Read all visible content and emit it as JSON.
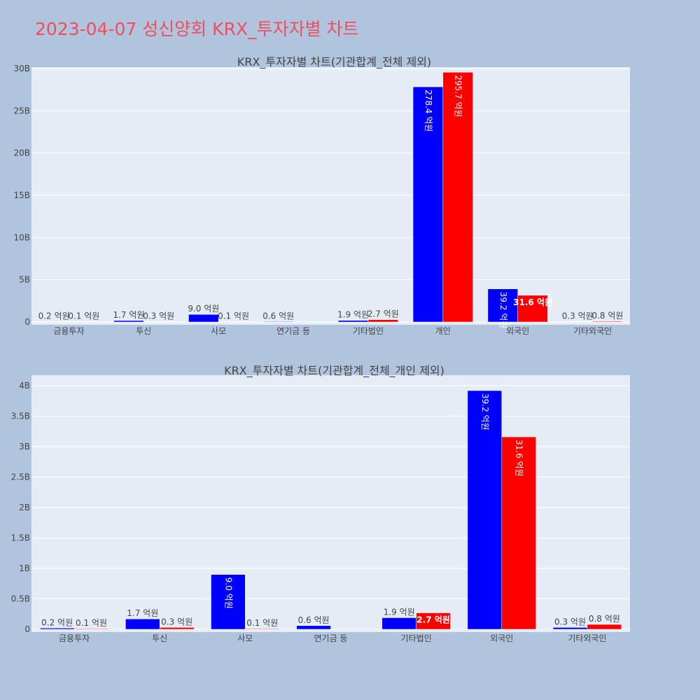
{
  "title": "2023-04-07 성신양회 KRX_투자자별 차트",
  "colors": {
    "background": "#b0c4de",
    "plot_bg": "#e5ecf6",
    "title": "#ef4e5e",
    "series_a": "#0000ff",
    "series_b": "#ff0000"
  },
  "chart_data": [
    {
      "type": "bar",
      "title": "KRX_투자자별 차트(기관합계_전체 제외)",
      "categories": [
        "금융투자",
        "투신",
        "사모",
        "연기금 등",
        "기타법인",
        "개인",
        "외국인",
        "기타외국인"
      ],
      "ylim": [
        0,
        30000000000
      ],
      "yticks": [
        0,
        5000000000,
        10000000000,
        15000000000,
        20000000000,
        25000000000,
        30000000000
      ],
      "ytick_labels": [
        "0",
        "5B",
        "10B",
        "15B",
        "20B",
        "25B",
        "30B"
      ],
      "grid": true,
      "series": [
        {
          "color": "#0000ff",
          "values": [
            20000000,
            170000000,
            900000000,
            60000000,
            190000000,
            27840000000,
            3920000000,
            30000000
          ],
          "labels": [
            "0.2 억원",
            "1.7 억원",
            "9.0 억원",
            "0.6 억원",
            "1.9 억원",
            "278.4 억원",
            "39.2 억원",
            "0.3 억원"
          ]
        },
        {
          "color": "#ff0000",
          "values": [
            10000000,
            30000000,
            10000000,
            null,
            270000000,
            29570000000,
            3160000000,
            80000000
          ],
          "labels": [
            "0.1 억원",
            "0.3 억원",
            "0.1 억원",
            "",
            "2.7 억원",
            "295.7 억원",
            "31.6 억원",
            "0.8 억원"
          ]
        }
      ]
    },
    {
      "type": "bar",
      "title": "KRX_투자자별 차트(기관합계_전체_개인 제외)",
      "categories": [
        "금융투자",
        "투신",
        "사모",
        "연기금 등",
        "기타법인",
        "외국인",
        "기타외국인"
      ],
      "ylim": [
        0,
        4150000000
      ],
      "yticks": [
        0,
        500000000,
        1000000000,
        1500000000,
        2000000000,
        2500000000,
        3000000000,
        3500000000,
        4000000000
      ],
      "ytick_labels": [
        "0",
        "0.5B",
        "1B",
        "1.5B",
        "2B",
        "2.5B",
        "3B",
        "3.5B",
        "4B"
      ],
      "grid": true,
      "series": [
        {
          "color": "#0000ff",
          "values": [
            20000000,
            170000000,
            900000000,
            60000000,
            190000000,
            3920000000,
            30000000
          ],
          "labels": [
            "0.2 억원",
            "1.7 억원",
            "9.0 억원",
            "0.6 억원",
            "1.9 억원",
            "39.2 억원",
            "0.3 억원"
          ]
        },
        {
          "color": "#ff0000",
          "values": [
            10000000,
            30000000,
            10000000,
            null,
            270000000,
            3160000000,
            80000000
          ],
          "labels": [
            "0.1 억원",
            "0.3 억원",
            "0.1 억원",
            "",
            "2.7 억원",
            "31.6 억원",
            "0.8 억원"
          ]
        }
      ]
    }
  ]
}
